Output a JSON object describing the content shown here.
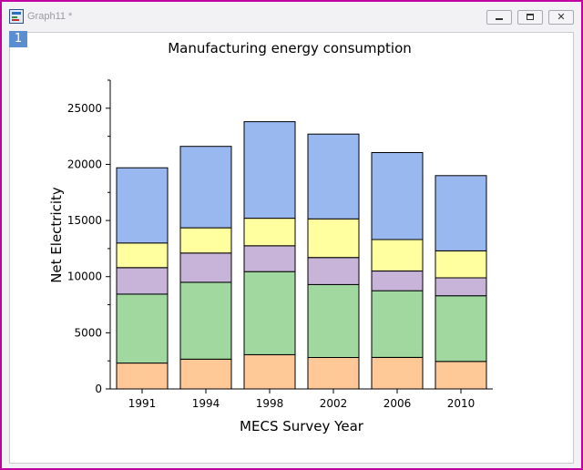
{
  "window": {
    "title": "Graph11 *",
    "layer_label": "1",
    "controls": {
      "minimize_icon": "minimize-icon",
      "maximize_icon": "restore-icon",
      "close_icon": "close-icon",
      "close_glyph": "✕"
    }
  },
  "chart_data": {
    "type": "bar",
    "stacked": true,
    "title": "Manufacturing energy consumption",
    "xlabel": "MECS Survey Year",
    "ylabel": "Net Electricity",
    "categories": [
      "1991",
      "1994",
      "1998",
      "2002",
      "2006",
      "2010"
    ],
    "ylim": [
      0,
      27500
    ],
    "yticks": [
      0,
      5000,
      10000,
      15000,
      20000,
      25000
    ],
    "ytick_labels": [
      "0",
      "5000",
      "10000",
      "15000",
      "20000",
      "25000"
    ],
    "series": [
      {
        "values": [
          2300,
          2650,
          3050,
          2800,
          2800,
          2450
        ],
        "color": "#ffc896"
      },
      {
        "values": [
          6150,
          6850,
          7400,
          6500,
          5950,
          5850
        ],
        "color": "#a0d8a0"
      },
      {
        "values": [
          2350,
          2600,
          2300,
          2400,
          1750,
          1600
        ],
        "color": "#c8b4d8"
      },
      {
        "values": [
          2200,
          2250,
          2450,
          3450,
          2800,
          2400
        ],
        "color": "#ffffa0"
      },
      {
        "values": [
          6700,
          7250,
          8600,
          7550,
          7750,
          6700
        ],
        "color": "#9ab8f0"
      }
    ],
    "grid": false,
    "legend": "none"
  }
}
